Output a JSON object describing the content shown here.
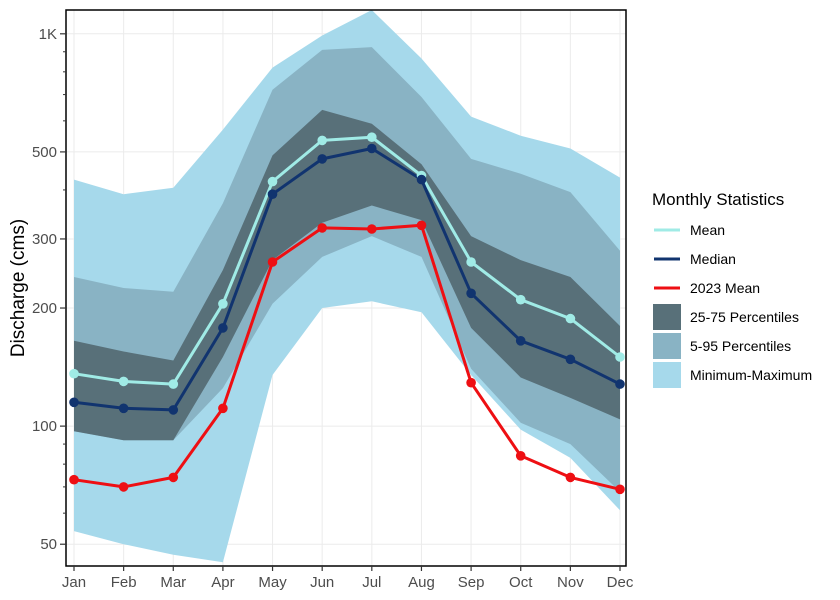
{
  "chart_data": {
    "type": "line",
    "title": "",
    "xlabel": "",
    "ylabel": "Discharge (cms)",
    "yscale": "log",
    "ylim": [
      44,
      1150
    ],
    "y_ticks": [
      {
        "value": 50,
        "label": "50"
      },
      {
        "value": 100,
        "label": "100"
      },
      {
        "value": 200,
        "label": "200"
      },
      {
        "value": 300,
        "label": "300"
      },
      {
        "value": 500,
        "label": "500"
      },
      {
        "value": 1000,
        "label": "1K"
      }
    ],
    "categories": [
      "Jan",
      "Feb",
      "Mar",
      "Apr",
      "May",
      "Jun",
      "Jul",
      "Aug",
      "Sep",
      "Oct",
      "Nov",
      "Dec"
    ],
    "bands": [
      {
        "name": "Minimum-Maximum",
        "color": "#a6d9eb",
        "lower": [
          54,
          50,
          47,
          45,
          135,
          200,
          208,
          195,
          135,
          98,
          83,
          61
        ],
        "upper": [
          425,
          390,
          405,
          570,
          820,
          990,
          1150,
          865,
          615,
          550,
          510,
          430
        ]
      },
      {
        "name": "5-95 Percentiles",
        "color": "#89b3c4",
        "lower": [
          97,
          92,
          92,
          125,
          205,
          270,
          305,
          270,
          140,
          102,
          90,
          68
        ],
        "upper": [
          240,
          225,
          220,
          370,
          720,
          910,
          925,
          690,
          480,
          440,
          395,
          280
        ]
      },
      {
        "name": "25-75 Percentiles",
        "color": "#587079",
        "lower": [
          97,
          92,
          92,
          150,
          265,
          330,
          365,
          335,
          178,
          133,
          118,
          104
        ],
        "upper": [
          165,
          155,
          147,
          250,
          490,
          640,
          590,
          465,
          305,
          265,
          240,
          180
        ]
      }
    ],
    "series": [
      {
        "name": "Mean",
        "color": "#a0ebe6",
        "values": [
          136,
          130,
          128,
          205,
          420,
          535,
          545,
          435,
          262,
          210,
          188,
          150
        ]
      },
      {
        "name": "Median",
        "color": "#11346f",
        "values": [
          115,
          111,
          110,
          178,
          390,
          480,
          510,
          425,
          218,
          165,
          148,
          128
        ]
      },
      {
        "name": "2023 Mean",
        "color": "#ee0f13",
        "values": [
          73,
          70,
          74,
          111,
          262,
          320,
          318,
          325,
          129,
          84,
          74,
          69
        ]
      }
    ],
    "legend": {
      "title": "Monthly Statistics",
      "position": "right",
      "entries": [
        {
          "label": "Mean",
          "kind": "line",
          "color": "#a0ebe6"
        },
        {
          "label": "Median",
          "kind": "line",
          "color": "#11346f"
        },
        {
          "label": "2023 Mean",
          "kind": "line",
          "color": "#ee0f13"
        },
        {
          "label": "25-75 Percentiles",
          "kind": "box",
          "color": "#587079"
        },
        {
          "label": "5-95 Percentiles",
          "kind": "box",
          "color": "#89b3c4"
        },
        {
          "label": "Minimum-Maximum",
          "kind": "box",
          "color": "#a6d9eb"
        }
      ]
    }
  }
}
